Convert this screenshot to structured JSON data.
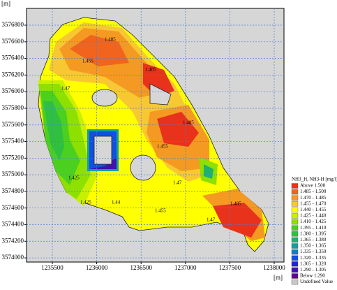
{
  "axes": {
    "y_unit": "[m]",
    "x_unit": "[m]",
    "xlim": [
      1235209,
      1238110
    ],
    "ylim": [
      3573950,
      3577002
    ],
    "xticks": [
      1235500,
      1236000,
      1236500,
      1237000,
      1237500,
      1238000
    ],
    "yticks": [
      3574000,
      3574200,
      3574400,
      3574600,
      3574800,
      3575000,
      3575200,
      3575400,
      3575600,
      3575800,
      3576000,
      3576200,
      3576400,
      3576600,
      3576800
    ]
  },
  "contour_labels": [
    "1.485",
    "1.455",
    "1.47",
    "1.485",
    "1.485",
    "1.455",
    "1.425",
    "1.44",
    "1.425",
    "1.455",
    "1.47",
    "1.485",
    "1.47"
  ],
  "legend": {
    "title": "NH3_H, NH3-H [mg/l]",
    "items": [
      {
        "label": "Above 1.500",
        "color": "#e8321c"
      },
      {
        "label": "1.485 - 1.500",
        "color": "#f0641e"
      },
      {
        "label": "1.470 - 1.485",
        "color": "#f49a22"
      },
      {
        "label": "1.455 - 1.470",
        "color": "#f8c832"
      },
      {
        "label": "1.440 - 1.455",
        "color": "#ffff00"
      },
      {
        "label": "1.425 - 1.440",
        "color": "#c8f000"
      },
      {
        "label": "1.410 - 1.425",
        "color": "#8ee000"
      },
      {
        "label": "1.395 - 1.410",
        "color": "#4cd020"
      },
      {
        "label": "1.380 - 1.395",
        "color": "#30c040"
      },
      {
        "label": "1.365 - 1.380",
        "color": "#20b070"
      },
      {
        "label": "1.350 - 1.365",
        "color": "#10a0a0"
      },
      {
        "label": "1.335 - 1.350",
        "color": "#1080c0"
      },
      {
        "label": "1.320 - 1.335",
        "color": "#1050e0"
      },
      {
        "label": "1.305 - 1.320",
        "color": "#2020e0"
      },
      {
        "label": "1.290 - 1.305",
        "color": "#4010b0"
      },
      {
        "label": "Below 1.290",
        "color": "#600090"
      },
      {
        "label": "Undefined Value",
        "color": "#c8c8c8"
      }
    ]
  }
}
